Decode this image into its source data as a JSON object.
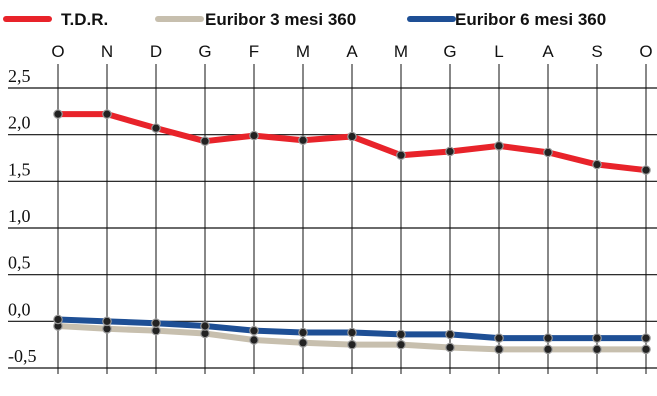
{
  "chart_data": {
    "type": "line",
    "categories": [
      "O",
      "N",
      "D",
      "G",
      "F",
      "M",
      "A",
      "M",
      "G",
      "L",
      "A",
      "S",
      "O"
    ],
    "ylim": [
      -0.5,
      2.5
    ],
    "yticks": [
      "2,5",
      "2,0",
      "1,5",
      "1,0",
      "0,5",
      "0,0",
      "-0,5"
    ],
    "ytick_values": [
      2.5,
      2.0,
      1.5,
      1.0,
      0.5,
      0.0,
      -0.5
    ],
    "grid": true,
    "legend_position": "top",
    "series": [
      {
        "name": "T.D.R.",
        "color": "#e8232a",
        "values": [
          2.22,
          2.22,
          2.07,
          1.93,
          1.99,
          1.94,
          1.98,
          1.78,
          1.82,
          1.88,
          1.81,
          1.68,
          1.62
        ]
      },
      {
        "name": "Euribor 3 mesi 360",
        "color": "#c7bfae",
        "values": [
          -0.05,
          -0.08,
          -0.1,
          -0.13,
          -0.2,
          -0.23,
          -0.25,
          -0.25,
          -0.28,
          -0.3,
          -0.3,
          -0.3,
          -0.3
        ]
      },
      {
        "name": "Euribor 6 mesi 360",
        "color": "#1e4f95",
        "values": [
          0.02,
          0.0,
          -0.02,
          -0.05,
          -0.1,
          -0.12,
          -0.12,
          -0.14,
          -0.14,
          -0.18,
          -0.18,
          -0.18,
          -0.18
        ]
      }
    ]
  }
}
